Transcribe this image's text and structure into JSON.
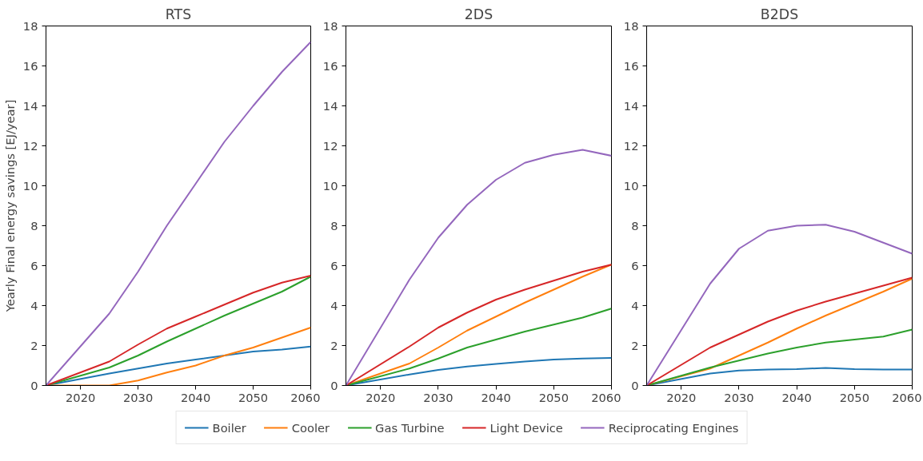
{
  "chart_data": [
    {
      "type": "line",
      "title": "RTS",
      "ylabel": "Yearly Final energy savings [EJ/year]",
      "x": [
        2014,
        2025,
        2030,
        2035,
        2040,
        2045,
        2050,
        2055,
        2060
      ],
      "xlim": [
        2014,
        2060
      ],
      "xticks": [
        2020,
        2030,
        2040,
        2050,
        2060
      ],
      "ylim": [
        0,
        18
      ],
      "yticks": [
        0,
        2,
        4,
        6,
        8,
        10,
        12,
        14,
        16,
        18
      ],
      "grid": false,
      "legend": "bottom",
      "series": [
        {
          "name": "Boiler",
          "color": "#1f77b4",
          "values": [
            0,
            0.6,
            0.85,
            1.1,
            1.3,
            1.5,
            1.7,
            1.8,
            1.95
          ]
        },
        {
          "name": "Cooler",
          "color": "#ff7f0e",
          "values": [
            0,
            0,
            0.25,
            0.65,
            1.0,
            1.5,
            1.9,
            2.4,
            2.9
          ]
        },
        {
          "name": "Gas Turbine",
          "color": "#2ca02c",
          "values": [
            0,
            0.9,
            1.5,
            2.2,
            2.85,
            3.5,
            4.1,
            4.7,
            5.45
          ]
        },
        {
          "name": "Light Device",
          "color": "#d62728",
          "values": [
            0,
            1.2,
            2.05,
            2.85,
            3.45,
            4.05,
            4.65,
            5.15,
            5.5
          ]
        },
        {
          "name": "Reciprocating Engines",
          "color": "#9467bd",
          "values": [
            0,
            3.6,
            5.7,
            8.0,
            10.1,
            12.2,
            14.0,
            15.7,
            17.2
          ]
        }
      ]
    },
    {
      "type": "line",
      "title": "2DS",
      "x": [
        2014,
        2025,
        2030,
        2035,
        2040,
        2045,
        2050,
        2055,
        2060
      ],
      "xlim": [
        2014,
        2060
      ],
      "xticks": [
        2020,
        2030,
        2040,
        2050,
        2060
      ],
      "ylim": [
        0,
        18
      ],
      "yticks": [
        0,
        2,
        4,
        6,
        8,
        10,
        12,
        14,
        16,
        18
      ],
      "grid": false,
      "series": [
        {
          "color": "#1f77b4",
          "values": [
            0,
            0.55,
            0.78,
            0.95,
            1.08,
            1.2,
            1.3,
            1.35,
            1.38
          ]
        },
        {
          "color": "#ff7f0e",
          "values": [
            0,
            1.1,
            1.9,
            2.75,
            3.45,
            4.15,
            4.8,
            5.45,
            6.05
          ]
        },
        {
          "color": "#2ca02c",
          "values": [
            0,
            0.85,
            1.35,
            1.9,
            2.3,
            2.7,
            3.05,
            3.4,
            3.85
          ]
        },
        {
          "color": "#d62728",
          "values": [
            0,
            1.95,
            2.9,
            3.65,
            4.3,
            4.8,
            5.25,
            5.7,
            6.05
          ]
        },
        {
          "color": "#9467bd",
          "values": [
            0,
            5.3,
            7.4,
            9.05,
            10.3,
            11.15,
            11.55,
            11.8,
            11.5
          ]
        }
      ]
    },
    {
      "type": "line",
      "title": "B2DS",
      "x": [
        2014,
        2025,
        2030,
        2035,
        2040,
        2045,
        2050,
        2055,
        2060
      ],
      "xlim": [
        2014,
        2060
      ],
      "xticks": [
        2020,
        2030,
        2040,
        2050,
        2060
      ],
      "ylim": [
        0,
        18
      ],
      "yticks": [
        0,
        2,
        4,
        6,
        8,
        10,
        12,
        14,
        16,
        18
      ],
      "grid": false,
      "series": [
        {
          "color": "#1f77b4",
          "values": [
            0,
            0.6,
            0.75,
            0.8,
            0.82,
            0.88,
            0.82,
            0.8,
            0.8
          ]
        },
        {
          "color": "#ff7f0e",
          "values": [
            0,
            0.85,
            1.5,
            2.15,
            2.85,
            3.5,
            4.1,
            4.7,
            5.35
          ]
        },
        {
          "color": "#2ca02c",
          "values": [
            0,
            0.9,
            1.25,
            1.6,
            1.9,
            2.15,
            2.3,
            2.45,
            2.8
          ]
        },
        {
          "color": "#d62728",
          "values": [
            0,
            1.9,
            2.55,
            3.2,
            3.75,
            4.2,
            4.6,
            5.0,
            5.4
          ]
        },
        {
          "color": "#9467bd",
          "values": [
            0,
            5.1,
            6.85,
            7.75,
            8.0,
            8.05,
            7.7,
            7.15,
            6.6
          ]
        }
      ]
    }
  ]
}
